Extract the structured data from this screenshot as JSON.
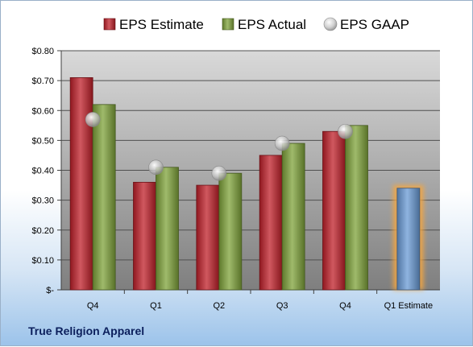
{
  "chart_data": {
    "type": "bar",
    "categories": [
      "Q4",
      "Q1",
      "Q2",
      "Q3",
      "Q4",
      "Q1 Estimate"
    ],
    "series": [
      {
        "name": "EPS Estimate",
        "color": "#c0202a",
        "values": [
          0.71,
          0.36,
          0.35,
          0.45,
          0.53,
          null
        ]
      },
      {
        "name": "EPS Actual",
        "color": "#7fa33a",
        "values": [
          0.62,
          0.41,
          0.39,
          0.49,
          0.55,
          null
        ]
      },
      {
        "name": "EPS GAAP",
        "color": "#b8b8b8",
        "marker": "sphere",
        "values": [
          0.57,
          0.41,
          0.39,
          0.49,
          0.53,
          null
        ]
      },
      {
        "name": "",
        "color": "#6a9bd6",
        "values": [
          null,
          null,
          null,
          null,
          null,
          0.34
        ]
      }
    ],
    "y_ticks": [
      "$-",
      "$0.10",
      "$0.20",
      "$0.30",
      "$0.40",
      "$0.50",
      "$0.60",
      "$0.70",
      "$0.80"
    ],
    "ylim": [
      0,
      0.8
    ],
    "grid": true,
    "legend_position": "top",
    "highlight_color": "#f4a640",
    "company": "True Religion Apparel"
  }
}
